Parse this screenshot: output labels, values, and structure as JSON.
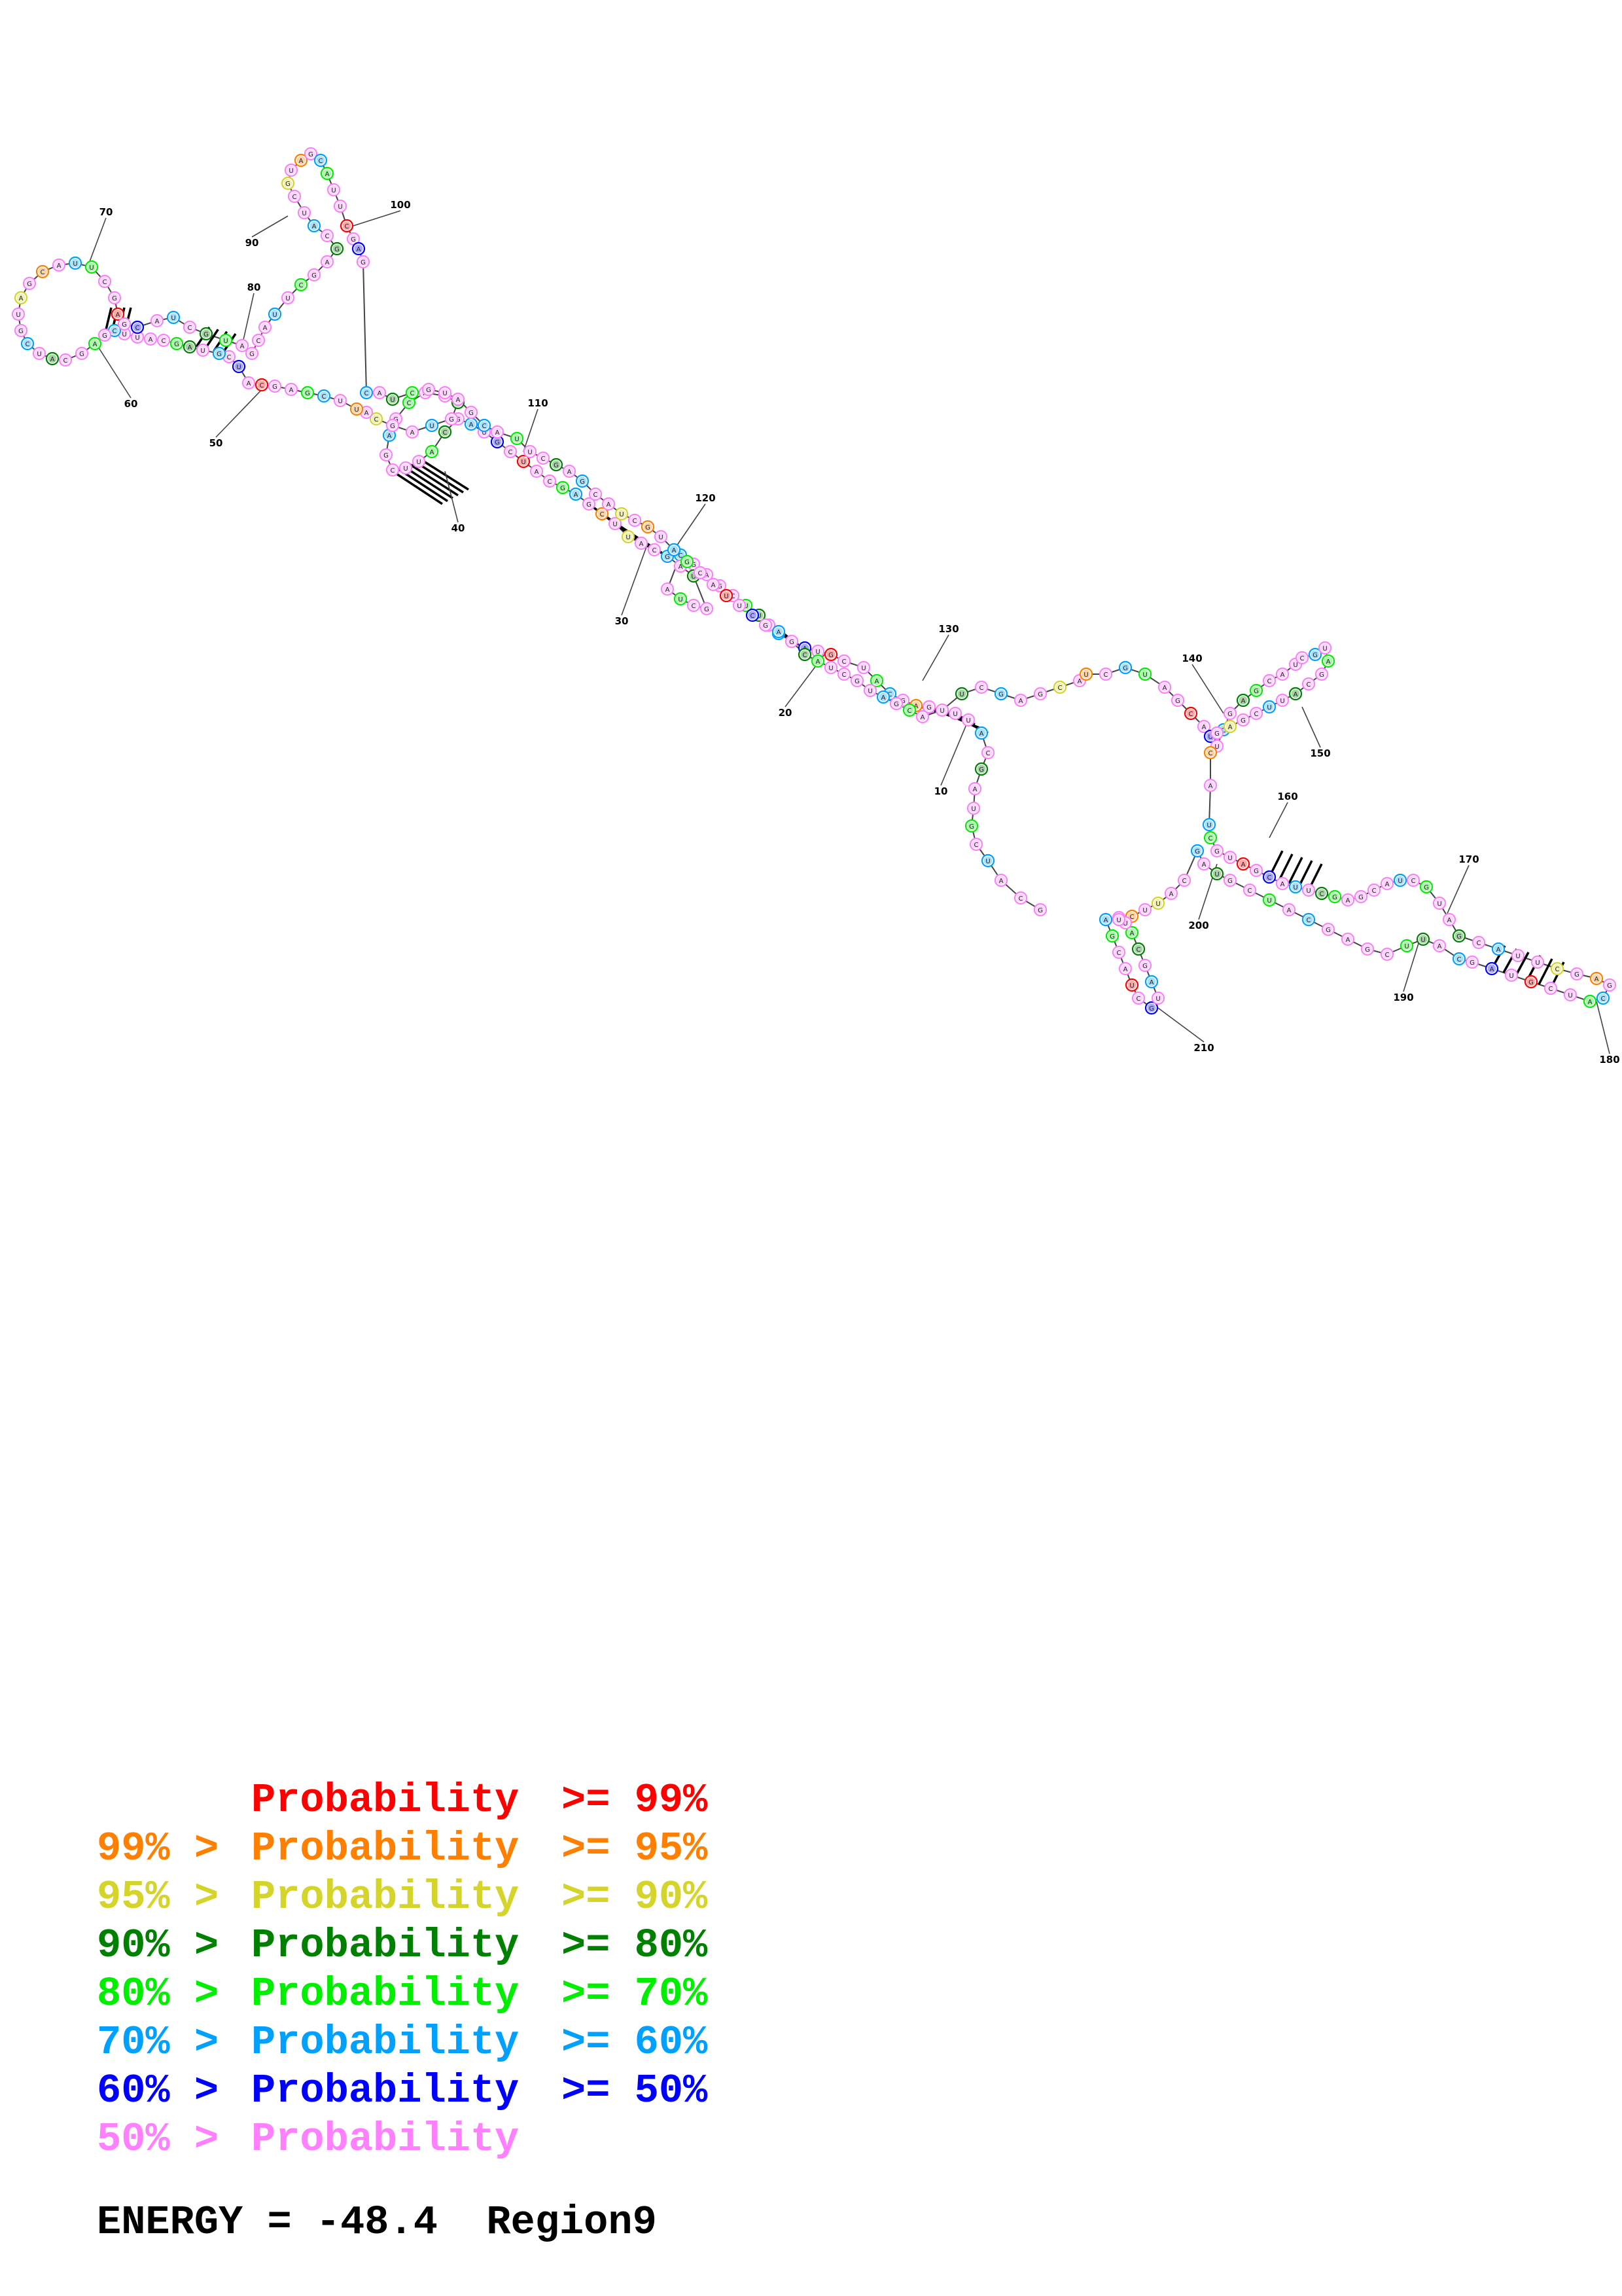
{
  "colors": {
    "p99": "#ff0000",
    "p95": "#ff7f00",
    "p90": "#d4d42a",
    "p80": "#008000",
    "p70": "#00ee00",
    "p60": "#00a0ff",
    "p50": "#0000ff",
    "plow": "#ff80ff"
  },
  "legend": [
    {
      "lower": "",
      "mid": "Probability",
      "upper": ">= 99%",
      "color_key": "p99"
    },
    {
      "lower": "99% >",
      "mid": "Probability",
      "upper": ">= 95%",
      "color_key": "p95"
    },
    {
      "lower": "95% >",
      "mid": "Probability",
      "upper": ">= 90%",
      "color_key": "p90"
    },
    {
      "lower": "90% >",
      "mid": "Probability",
      "upper": ">= 80%",
      "color_key": "p80"
    },
    {
      "lower": "80% >",
      "mid": "Probability",
      "upper": ">= 70%",
      "color_key": "p70"
    },
    {
      "lower": "70% >",
      "mid": "Probability",
      "upper": ">= 60%",
      "color_key": "p60"
    },
    {
      "lower": "60% >",
      "mid": "Probability",
      "upper": ">= 50%",
      "color_key": "p50"
    },
    {
      "lower": "50% >",
      "mid": "Probability",
      "upper": "",
      "color_key": "plow"
    }
  ],
  "energy": {
    "label": "ENERGY =",
    "value": "-48.4",
    "region": "Region9"
  },
  "position_labels": [
    "10",
    "20",
    "30",
    "40",
    "50",
    "60",
    "70",
    "80",
    "90",
    "100",
    "110",
    "120",
    "130",
    "140",
    "150",
    "160",
    "170",
    "180",
    "190",
    "200",
    "210"
  ]
}
